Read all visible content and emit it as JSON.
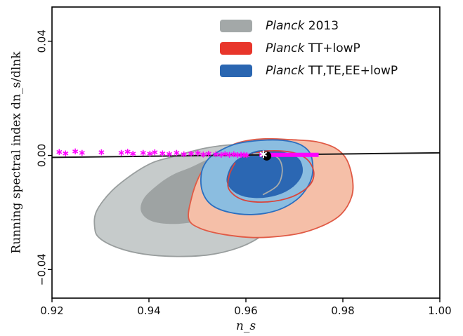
{
  "chart_data": {
    "type": "scatter",
    "xlabel": "n_s",
    "ylabel": "Running spectral index dn_s/dlnk",
    "xlim": [
      0.92,
      1.0
    ],
    "ylim": [
      -0.05,
      0.052
    ],
    "x_ticks": [
      "0.92",
      "0.94",
      "0.96",
      "0.98",
      "1.00"
    ],
    "y_ticks": [
      "−0.04",
      "0.00",
      "0.04"
    ],
    "x_tick_values": [
      0.92,
      0.94,
      0.96,
      0.98,
      1.0
    ],
    "y_tick_values": [
      -0.04,
      0.0,
      0.04
    ],
    "legend_position": "top-right",
    "legend": [
      {
        "prefix": "Planck",
        "suffix": " 2013",
        "color": "#a3a8a8"
      },
      {
        "prefix": "Planck",
        "suffix": " TT+lowP",
        "color": "#e8362b"
      },
      {
        "prefix": "Planck",
        "suffix": " TT,TE,EE+lowP",
        "color": "#2a66b1"
      }
    ],
    "contours": [
      {
        "series": "Planck 2013",
        "level": "95%",
        "fill": "#c6cbcb",
        "stroke": "#999e9e",
        "points": [
          [
            0.9448,
            -0.0005
          ],
          [
            0.9515,
            0.0025
          ],
          [
            0.9575,
            0.0038
          ],
          [
            0.9635,
            0.0035
          ],
          [
            0.9665,
            0.0025
          ],
          [
            0.9683,
            0.0015
          ],
          [
            0.9695,
            -0.002
          ],
          [
            0.9699,
            -0.008
          ],
          [
            0.9693,
            -0.0135
          ],
          [
            0.9675,
            -0.0195
          ],
          [
            0.9655,
            -0.0245
          ],
          [
            0.9625,
            -0.029
          ],
          [
            0.9582,
            -0.0325
          ],
          [
            0.9525,
            -0.0348
          ],
          [
            0.9458,
            -0.0354
          ],
          [
            0.939,
            -0.0346
          ],
          [
            0.9335,
            -0.0323
          ],
          [
            0.9297,
            -0.0288
          ],
          [
            0.9288,
            -0.025
          ],
          [
            0.9292,
            -0.0195
          ],
          [
            0.9323,
            -0.0125
          ],
          [
            0.9367,
            -0.0065
          ],
          [
            0.9408,
            -0.0025
          ]
        ]
      },
      {
        "series": "Planck 2013",
        "level": "68%",
        "fill": "#9ea3a3",
        "stroke": "#9ea3a3",
        "points": [
          [
            0.9485,
            -0.0045
          ],
          [
            0.9535,
            -0.0008
          ],
          [
            0.9585,
            0.0005
          ],
          [
            0.9625,
            -0.0008
          ],
          [
            0.9638,
            -0.0045
          ],
          [
            0.9628,
            -0.009
          ],
          [
            0.9598,
            -0.0148
          ],
          [
            0.9558,
            -0.0198
          ],
          [
            0.9503,
            -0.0228
          ],
          [
            0.945,
            -0.0238
          ],
          [
            0.9406,
            -0.0228
          ],
          [
            0.9385,
            -0.0195
          ],
          [
            0.9392,
            -0.0148
          ],
          [
            0.9424,
            -0.0098
          ],
          [
            0.9452,
            -0.0068
          ]
        ]
      },
      {
        "series": "Planck TT+lowP",
        "level": "95%",
        "fill": "#f5bfa8",
        "stroke": "#e05a45",
        "points": [
          [
            0.9553,
            0.0018
          ],
          [
            0.9585,
            0.0045
          ],
          [
            0.9635,
            0.0058
          ],
          [
            0.9695,
            0.0055
          ],
          [
            0.9745,
            0.0048
          ],
          [
            0.9785,
            0.0025
          ],
          [
            0.9808,
            -0.0015
          ],
          [
            0.982,
            -0.0085
          ],
          [
            0.9818,
            -0.0145
          ],
          [
            0.9797,
            -0.0205
          ],
          [
            0.976,
            -0.0245
          ],
          [
            0.9705,
            -0.0275
          ],
          [
            0.9625,
            -0.0288
          ],
          [
            0.9555,
            -0.0277
          ],
          [
            0.9505,
            -0.0255
          ],
          [
            0.9482,
            -0.0222
          ],
          [
            0.9488,
            -0.0148
          ],
          [
            0.9503,
            -0.0075
          ],
          [
            0.9522,
            -0.0025
          ]
        ]
      },
      {
        "series": "Planck TT,TE,EE+lowP",
        "level": "95%",
        "fill": "#8bbde0",
        "stroke": "#2b6fc0",
        "points": [
          [
            0.9535,
            0.0005
          ],
          [
            0.9575,
            0.0038
          ],
          [
            0.9625,
            0.0052
          ],
          [
            0.9675,
            0.0053
          ],
          [
            0.9712,
            0.0038
          ],
          [
            0.9733,
            0.0005
          ],
          [
            0.9738,
            -0.0055
          ],
          [
            0.9729,
            -0.0105
          ],
          [
            0.9705,
            -0.0155
          ],
          [
            0.9665,
            -0.0192
          ],
          [
            0.9615,
            -0.0207
          ],
          [
            0.9565,
            -0.0199
          ],
          [
            0.9528,
            -0.0172
          ],
          [
            0.951,
            -0.0125
          ],
          [
            0.9508,
            -0.0065
          ],
          [
            0.9517,
            -0.0025
          ]
        ]
      },
      {
        "series": "Planck TT,TE,EE+lowP",
        "level": "68%",
        "fill": "#2b67b3",
        "stroke": "#2b67b3",
        "points": [
          [
            0.9595,
            -0.0005
          ],
          [
            0.9625,
            0.0015
          ],
          [
            0.9662,
            0.0014
          ],
          [
            0.9695,
            0.0001
          ],
          [
            0.9712,
            -0.0022
          ],
          [
            0.9715,
            -0.0065
          ],
          [
            0.9697,
            -0.0108
          ],
          [
            0.9662,
            -0.0138
          ],
          [
            0.9618,
            -0.0147
          ],
          [
            0.9582,
            -0.0132
          ],
          [
            0.9562,
            -0.0095
          ],
          [
            0.9567,
            -0.005
          ],
          [
            0.958,
            -0.002
          ]
        ]
      }
    ],
    "contour_lines": [
      {
        "series": "Planck TT+lowP",
        "level": "68%",
        "color": "#d8453c",
        "points": [
          [
            0.9598,
            -0.0005
          ],
          [
            0.964,
            0.0015
          ],
          [
            0.9692,
            0.0012
          ],
          [
            0.9725,
            -0.0012
          ],
          [
            0.974,
            -0.0058
          ],
          [
            0.9731,
            -0.0105
          ],
          [
            0.9695,
            -0.0145
          ],
          [
            0.9643,
            -0.0163
          ],
          [
            0.9593,
            -0.0155
          ],
          [
            0.9565,
            -0.0118
          ],
          [
            0.9566,
            -0.0068
          ],
          [
            0.9578,
            -0.0025
          ]
        ]
      },
      {
        "series": "Planck 2013",
        "level": "68%",
        "color": "#a7abab",
        "points": [
          [
            0.9615,
            0.0006
          ],
          [
            0.9645,
            0.0006
          ],
          [
            0.9668,
            -0.0012
          ],
          [
            0.9675,
            -0.0055
          ],
          [
            0.9665,
            -0.0105
          ],
          [
            0.9635,
            -0.0138
          ]
        ]
      }
    ],
    "trajectory_points": {
      "color": "#ff00ff",
      "x": [
        0.9215,
        0.9228,
        0.9248,
        0.9262,
        0.9302,
        0.9343,
        0.9356,
        0.9367,
        0.9388,
        0.9402,
        0.9412,
        0.9428,
        0.9442,
        0.9457,
        0.9472,
        0.9487,
        0.9501,
        0.9512,
        0.9523,
        0.9538,
        0.9549,
        0.9557,
        0.9566,
        0.9575,
        0.9583,
        0.959,
        0.9596,
        0.9602
      ],
      "y": [
        0.0012,
        0.0007,
        0.0014,
        0.0009,
        0.0011,
        0.0009,
        0.0013,
        0.0006,
        0.0009,
        0.0006,
        0.0011,
        0.0007,
        0.0005,
        0.0009,
        0.0004,
        0.0006,
        0.0008,
        0.0003,
        0.0006,
        0.0004,
        0.0002,
        0.0005,
        0.0002,
        0.0004,
        0.0001,
        0.0002,
        0.0002,
        0.0001
      ]
    },
    "trajectory_bar": {
      "color": "#ff00ff",
      "x_start": 0.9628,
      "x_end": 0.975,
      "y": 0.0002
    },
    "line": {
      "color": "#1a1a1a",
      "x": [
        0.92,
        1.0
      ],
      "y": [
        -0.0007,
        0.0009
      ]
    },
    "marker_black": {
      "x": 0.9643,
      "y": -0.0002,
      "color": "#000000"
    },
    "marker_star": {
      "x": 0.9636,
      "y": 0.0004,
      "color": "#ffffff"
    }
  }
}
